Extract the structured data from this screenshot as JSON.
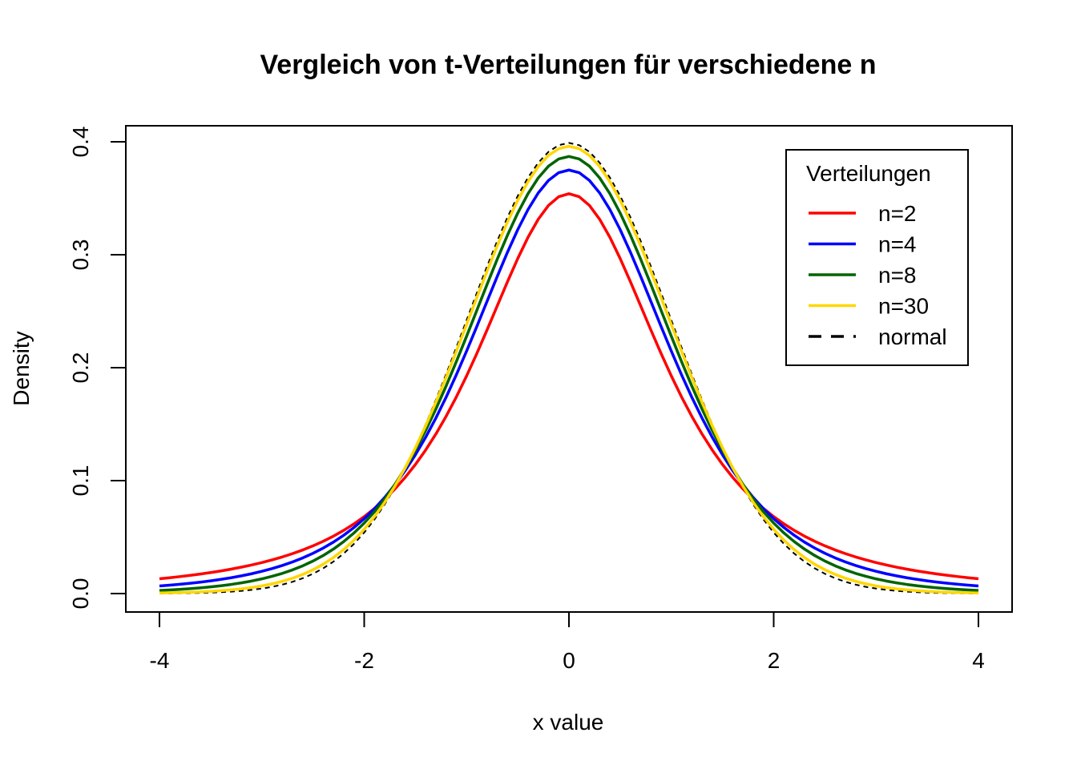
{
  "chart_data": {
    "type": "line",
    "title": "Vergleich von t-Verteilungen für verschiedene n",
    "xlabel": "x value",
    "ylabel": "Density",
    "xlim": [
      -4,
      4
    ],
    "ylim": [
      0,
      0.4
    ],
    "x_ticks": [
      "-4",
      "-2",
      "0",
      "2",
      "4"
    ],
    "y_ticks": [
      "0.0",
      "0.1",
      "0.2",
      "0.3",
      "0.4"
    ],
    "legend": {
      "title": "Verteilungen",
      "position": "top-right",
      "entries": [
        "n=2",
        "n=4",
        "n=8",
        "n=30",
        "normal"
      ]
    },
    "series": [
      {
        "name": "n=2",
        "color": "#ff0000",
        "df": 2,
        "style": "solid",
        "peak": 0.354
      },
      {
        "name": "n=4",
        "color": "#0000ff",
        "df": 4,
        "style": "solid",
        "peak": 0.375
      },
      {
        "name": "n=8",
        "color": "#006400",
        "df": 8,
        "style": "solid",
        "peak": 0.387
      },
      {
        "name": "n=30",
        "color": "#ffd700",
        "df": 30,
        "style": "solid",
        "peak": 0.396
      },
      {
        "name": "normal",
        "color": "#000000",
        "df": null,
        "style": "dashed",
        "peak": 0.399
      }
    ]
  }
}
